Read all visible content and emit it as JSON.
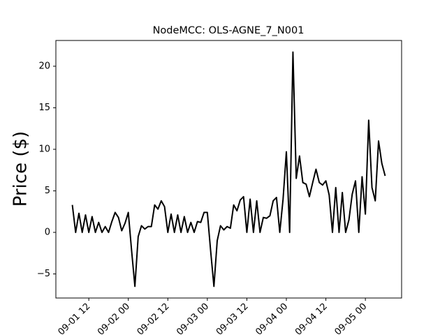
{
  "chart_data": {
    "type": "line",
    "title": "NodeMCC: OLS-AGNE_7_N001",
    "y_label": "Price ($)",
    "color": "#000000",
    "x": [
      "09-01 07",
      "09-01 08",
      "09-01 09",
      "09-01 10",
      "09-01 11",
      "09-01 12",
      "09-01 13",
      "09-01 14",
      "09-01 15",
      "09-01 16",
      "09-01 17",
      "09-01 18",
      "09-01 19",
      "09-01 20",
      "09-01 21",
      "09-01 22",
      "09-01 23",
      "09-02 00",
      "09-02 01",
      "09-02 02",
      "09-02 03",
      "09-02 04",
      "09-02 05",
      "09-02 06",
      "09-02 07",
      "09-02 08",
      "09-02 09",
      "09-02 10",
      "09-02 11",
      "09-02 12",
      "09-02 13",
      "09-02 14",
      "09-02 15",
      "09-02 16",
      "09-02 17",
      "09-02 18",
      "09-02 19",
      "09-02 20",
      "09-02 21",
      "09-02 22",
      "09-02 23",
      "09-03 00",
      "09-03 01",
      "09-03 02",
      "09-03 03",
      "09-03 04",
      "09-03 05",
      "09-03 06",
      "09-03 07",
      "09-03 08",
      "09-03 09",
      "09-03 10",
      "09-03 11",
      "09-03 12",
      "09-03 13",
      "09-03 14",
      "09-03 15",
      "09-03 16",
      "09-03 17",
      "09-03 18",
      "09-03 19",
      "09-03 20",
      "09-03 21",
      "09-03 22",
      "09-03 23",
      "09-04 00",
      "09-04 01",
      "09-04 02",
      "09-04 03",
      "09-04 04",
      "09-04 05",
      "09-04 06",
      "09-04 07",
      "09-04 08",
      "09-04 09",
      "09-04 10",
      "09-04 11",
      "09-04 12",
      "09-04 13",
      "09-04 14",
      "09-04 15",
      "09-04 16",
      "09-04 17",
      "09-04 18",
      "09-04 19",
      "09-04 20",
      "09-04 21",
      "09-04 22",
      "09-04 23",
      "09-05 00",
      "09-05 01",
      "09-05 02",
      "09-05 03",
      "09-05 04",
      "09-05 05",
      "09-05 06"
    ],
    "values": [
      3.3,
      0,
      2.3,
      0,
      2.1,
      0,
      1.9,
      0,
      1.2,
      0,
      0.7,
      0,
      1.3,
      2.4,
      1.8,
      0.2,
      1.1,
      2.4,
      -2.2,
      -6.5,
      -0.5,
      0.8,
      0.4,
      0.7,
      0.7,
      3.3,
      2.8,
      3.8,
      3.1,
      0,
      2.2,
      0,
      2.1,
      0,
      1.9,
      0,
      1.2,
      0,
      1.3,
      1.2,
      2.4,
      2.4,
      -2.2,
      -6.5,
      -1,
      0.8,
      0.3,
      0.7,
      0.5,
      3.3,
      2.6,
      3.9,
      4.3,
      0,
      4.0,
      0,
      3.8,
      0,
      1.8,
      1.7,
      2.0,
      3.8,
      4.2,
      0,
      4.0,
      9.7,
      0,
      21.7,
      6.5,
      9.2,
      6.0,
      5.8,
      4.3,
      6.0,
      7.6,
      6.0,
      5.7,
      6.2,
      4.5,
      0,
      5.4,
      0,
      4.8,
      0,
      1.5,
      4.6,
      6.2,
      0,
      6.7,
      2.2,
      13.5,
      5.4,
      3.8,
      11.0,
      8.3,
      6.8
    ],
    "xlim": [
      "09-01 02",
      "09-05 11"
    ],
    "xticks": [
      "09-01 12",
      "09-02 00",
      "09-02 12",
      "09-03 00",
      "09-03 12",
      "09-04 00",
      "09-04 12",
      "09-05 00"
    ],
    "ylim": [
      -7.9,
      23.1
    ],
    "yticks": [
      {
        "value": -5,
        "label": "−5"
      },
      0,
      5,
      10,
      15,
      20
    ]
  }
}
